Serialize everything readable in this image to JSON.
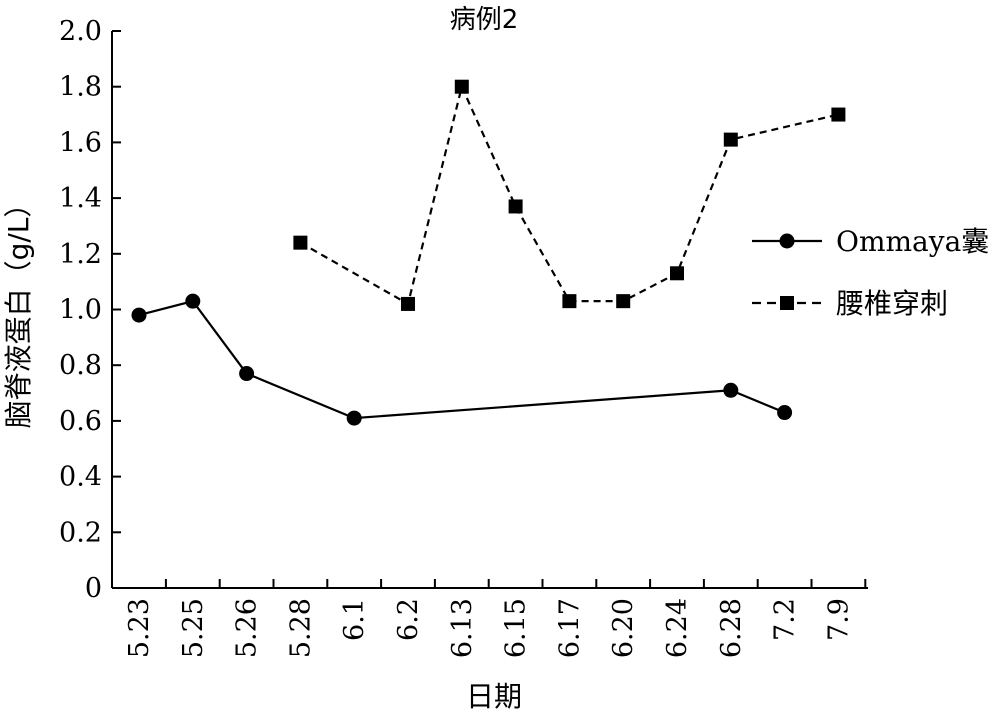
{
  "chart_data": {
    "type": "line",
    "title": "病例2",
    "xlabel": "日期",
    "ylabel": "脑脊液蛋白（g/L）",
    "categories": [
      "5.23",
      "5.25",
      "5.26",
      "5.28",
      "6.1",
      "6.2",
      "6.13",
      "6.15",
      "6.17",
      "6.20",
      "6.24",
      "6.28",
      "7.2",
      "7.9"
    ],
    "ylim": [
      0,
      2.0
    ],
    "yticks": [
      "0",
      "0.2",
      "0.4",
      "0.6",
      "0.8",
      "1.0",
      "1.2",
      "1.4",
      "1.6",
      "1.8",
      "2.0"
    ],
    "grid": false,
    "legend_position": "right",
    "series": [
      {
        "name": "Ommaya囊",
        "marker": "circle",
        "line_style": "solid",
        "color": "#000000",
        "points": [
          {
            "x": "5.23",
            "y": 0.98
          },
          {
            "x": "5.25",
            "y": 1.03
          },
          {
            "x": "5.26",
            "y": 0.77
          },
          {
            "x": "6.1",
            "y": 0.61
          },
          {
            "x": "6.28",
            "y": 0.71
          },
          {
            "x": "7.2",
            "y": 0.63
          }
        ]
      },
      {
        "name": "腰椎穿刺",
        "marker": "square",
        "line_style": "dashed",
        "color": "#000000",
        "points": [
          {
            "x": "5.28",
            "y": 1.24
          },
          {
            "x": "6.2",
            "y": 1.02
          },
          {
            "x": "6.13",
            "y": 1.8
          },
          {
            "x": "6.15",
            "y": 1.37
          },
          {
            "x": "6.17",
            "y": 1.03
          },
          {
            "x": "6.20",
            "y": 1.03
          },
          {
            "x": "6.24",
            "y": 1.13
          },
          {
            "x": "6.28",
            "y": 1.61
          },
          {
            "x": "7.9",
            "y": 1.7
          }
        ]
      }
    ]
  }
}
